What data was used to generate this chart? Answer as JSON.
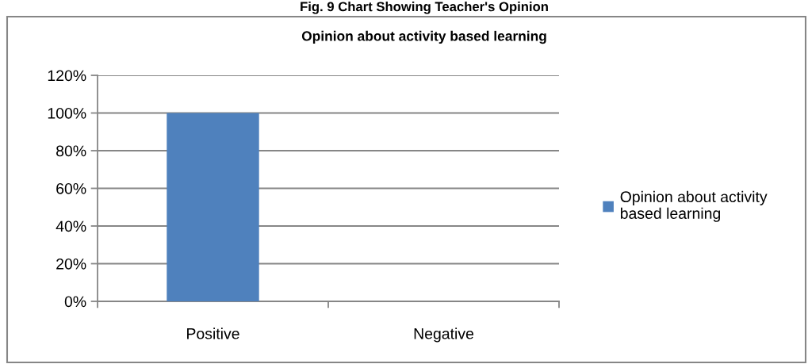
{
  "chart_data": {
    "type": "bar",
    "title": "Opinion about activity based learning",
    "annotations": [
      "Fig. 9 Chart Showing Teacher's Opinion"
    ],
    "categories": [
      "Positive",
      "Negative"
    ],
    "series": [
      {
        "name": "Opinion about activity based learning",
        "color": "#4f81bd",
        "values": [
          100,
          0
        ]
      }
    ],
    "ylim": [
      0,
      120
    ],
    "yticks": [
      {
        "value": 0,
        "label": "0%"
      },
      {
        "value": 20,
        "label": "20%"
      },
      {
        "value": 40,
        "label": "40%"
      },
      {
        "value": 60,
        "label": "60%"
      },
      {
        "value": 80,
        "label": "80%"
      },
      {
        "value": 100,
        "label": "100%"
      },
      {
        "value": 120,
        "label": "120%"
      }
    ],
    "grid": "y",
    "legend": "right"
  }
}
